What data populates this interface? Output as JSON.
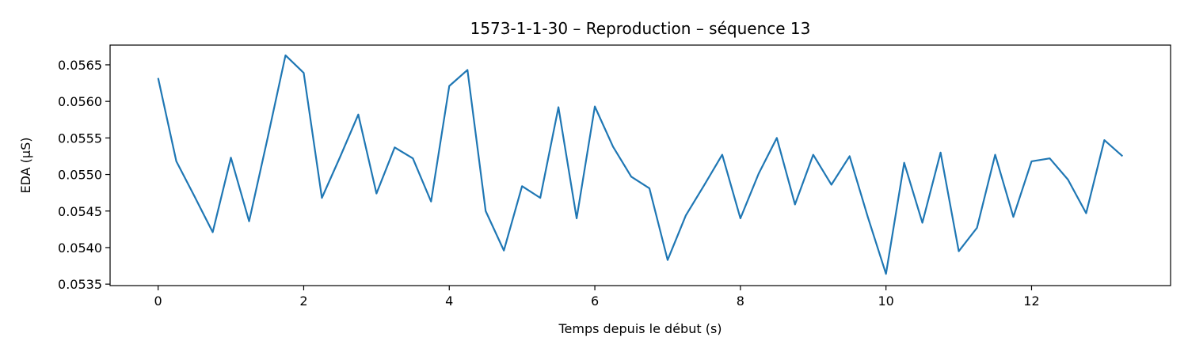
{
  "chart_data": {
    "type": "line",
    "title": "1573-1-1-30 – Reproduction – séquence 13",
    "xlabel": "Temps depuis le début (s)",
    "ylabel": "EDA (µS)",
    "xlim": [
      -0.66,
      13.91
    ],
    "ylim": [
      0.05348,
      0.05677
    ],
    "xticks": [
      0,
      2,
      4,
      6,
      8,
      10,
      12
    ],
    "xtick_labels": [
      "0",
      "2",
      "4",
      "6",
      "8",
      "10",
      "12"
    ],
    "yticks": [
      0.0535,
      0.054,
      0.0545,
      0.055,
      0.0555,
      0.056,
      0.0565
    ],
    "ytick_labels": [
      "0.0535",
      "0.0540",
      "0.0545",
      "0.0550",
      "0.0555",
      "0.0560",
      "0.0565"
    ],
    "grid": false,
    "line_color": "#1f77b4",
    "series": [
      {
        "x": [
          0,
          0.25,
          0.5,
          0.75,
          1,
          1.25,
          1.5,
          1.75,
          2,
          2.25,
          2.5,
          2.75,
          3,
          3.25,
          3.5,
          3.75,
          4,
          4.25,
          4.5,
          4.75,
          5,
          5.25,
          5.5,
          5.75,
          6,
          6.25,
          6.5,
          6.75,
          7,
          7.25,
          7.5,
          7.75,
          8,
          8.25,
          8.5,
          8.75,
          9,
          9.25,
          9.5,
          9.75,
          10,
          10.25,
          10.5,
          10.75,
          11,
          11.25,
          11.5,
          11.75,
          12,
          12.25,
          12.5,
          12.75,
          13,
          13.25
        ],
        "y": [
          0.05632,
          0.05518,
          0.0547,
          0.05421,
          0.05523,
          0.05436,
          0.05548,
          0.05663,
          0.05639,
          0.05468,
          0.05524,
          0.05582,
          0.05474,
          0.05537,
          0.05522,
          0.05463,
          0.05621,
          0.05643,
          0.0545,
          0.05396,
          0.05484,
          0.05468,
          0.05592,
          0.0544,
          0.05593,
          0.05538,
          0.05497,
          0.05481,
          0.05383,
          0.05444,
          0.05485,
          0.05527,
          0.0544,
          0.05501,
          0.0555,
          0.05459,
          0.05527,
          0.05486,
          0.05525,
          0.05442,
          0.05364,
          0.05516,
          0.05434,
          0.0553,
          0.05395,
          0.05427,
          0.05527,
          0.05442,
          0.05518,
          0.05522,
          0.05493,
          0.05447,
          0.05547,
          0.05525
        ]
      }
    ]
  }
}
